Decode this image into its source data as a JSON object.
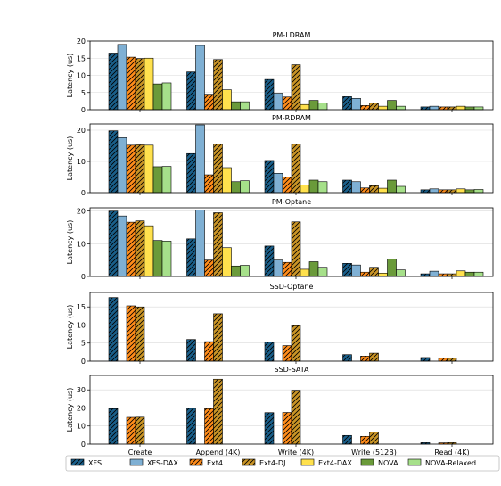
{
  "colors": {
    "XFS": "#1a5f8a",
    "XFS-DAX": "#7fb0d4",
    "Ext4": "#ff8c1a",
    "Ext4-DJ": "#c99426",
    "Ext4-DAX": "#ffe14d",
    "NOVA": "#6a9a3a",
    "NOVA-Relaxed": "#a6e08a"
  },
  "legend": {
    "items": [
      {
        "name": "XFS",
        "hatch": true
      },
      {
        "name": "XFS-DAX",
        "hatch": false
      },
      {
        "name": "Ext4",
        "hatch": true
      },
      {
        "name": "Ext4-DJ",
        "hatch": true
      },
      {
        "name": "Ext4-DAX",
        "hatch": false
      },
      {
        "name": "NOVA",
        "hatch": false
      },
      {
        "name": "NOVA-Relaxed",
        "hatch": false
      }
    ]
  },
  "chart_data": [
    {
      "type": "bar",
      "title": "PM-LDRAM",
      "ylabel": "Latency (us)",
      "ylim": [
        0,
        20
      ],
      "yticks": [
        0,
        5,
        10,
        15,
        20
      ],
      "categories": [
        "Create",
        "Append (4K)",
        "Write (4K)",
        "Write (512B)",
        "Read (4K)"
      ],
      "show_xticks": false,
      "series": [
        {
          "name": "XFS",
          "values": [
            16.5,
            11,
            8.8,
            3.8,
            0.8
          ]
        },
        {
          "name": "XFS-DAX",
          "values": [
            19,
            18.7,
            4.8,
            3.3,
            1
          ]
        },
        {
          "name": "Ext4",
          "values": [
            15.3,
            4.5,
            3.7,
            1.2,
            0.8
          ]
        },
        {
          "name": "Ext4-DJ",
          "values": [
            14.9,
            14.6,
            13.1,
            2,
            0.8
          ]
        },
        {
          "name": "Ext4-DAX",
          "values": [
            15,
            5.8,
            1.5,
            1,
            1
          ]
        },
        {
          "name": "NOVA",
          "values": [
            7.5,
            2.3,
            2.7,
            2.7,
            0.8
          ]
        },
        {
          "name": "NOVA-Relaxed",
          "values": [
            7.8,
            2.3,
            2,
            1,
            0.8
          ]
        }
      ]
    },
    {
      "type": "bar",
      "title": "PM-RDRAM",
      "ylabel": "Latency (us)",
      "ylim": [
        0,
        22
      ],
      "yticks": [
        0,
        10,
        20
      ],
      "categories": [
        "Create",
        "Append (4K)",
        "Write (4K)",
        "Write (512B)",
        "Read (4K)"
      ],
      "show_xticks": false,
      "series": [
        {
          "name": "XFS",
          "values": [
            19.8,
            12.5,
            10.3,
            4,
            0.9
          ]
        },
        {
          "name": "XFS-DAX",
          "values": [
            17.6,
            21.7,
            6.2,
            3.5,
            1.2
          ]
        },
        {
          "name": "Ext4",
          "values": [
            15.2,
            5.7,
            5,
            1.5,
            0.9
          ]
        },
        {
          "name": "Ext4-DJ",
          "values": [
            15.3,
            15.5,
            15.5,
            2.2,
            0.9
          ]
        },
        {
          "name": "Ext4-DAX",
          "values": [
            15.2,
            8,
            2.4,
            1.4,
            1.2
          ]
        },
        {
          "name": "NOVA",
          "values": [
            8.3,
            3.5,
            4,
            4,
            0.9
          ]
        },
        {
          "name": "NOVA-Relaxed",
          "values": [
            8.4,
            3.8,
            3.5,
            2,
            1
          ]
        }
      ]
    },
    {
      "type": "bar",
      "title": "PM-Optane",
      "ylabel": "Latency (us)",
      "ylim": [
        0,
        21
      ],
      "yticks": [
        0,
        10,
        20
      ],
      "categories": [
        "Create",
        "Append (4K)",
        "Write (4K)",
        "Write (512B)",
        "Read (4K)"
      ],
      "show_xticks": false,
      "series": [
        {
          "name": "XFS",
          "values": [
            20,
            11.5,
            9.3,
            4,
            0.8
          ]
        },
        {
          "name": "XFS-DAX",
          "values": [
            18.5,
            20.3,
            5,
            3.5,
            1.6
          ]
        },
        {
          "name": "Ext4",
          "values": [
            16.6,
            5,
            4.3,
            1.3,
            0.8
          ]
        },
        {
          "name": "Ext4-DJ",
          "values": [
            17,
            19.5,
            16.7,
            2.8,
            0.8
          ]
        },
        {
          "name": "Ext4-DAX",
          "values": [
            15.5,
            8.8,
            2.2,
            1,
            1.7
          ]
        },
        {
          "name": "NOVA",
          "values": [
            11,
            3.2,
            4.5,
            5.3,
            1.3
          ]
        },
        {
          "name": "NOVA-Relaxed",
          "values": [
            10.8,
            3.4,
            2.8,
            2,
            1.3
          ]
        }
      ]
    },
    {
      "type": "bar",
      "title": "SSD-Optane",
      "ylabel": "Latency (us)",
      "ylim": [
        0,
        19
      ],
      "yticks": [
        0,
        5,
        10,
        15
      ],
      "categories": [
        "Create",
        "Append (4K)",
        "Write (4K)",
        "Write (512B)",
        "Read (4K)"
      ],
      "show_xticks": false,
      "series": [
        {
          "name": "XFS",
          "values": [
            17.6,
            6,
            5.3,
            1.8,
            1
          ]
        },
        {
          "name": "Ext4",
          "values": [
            15.3,
            5.4,
            4.3,
            1.4,
            0.8
          ]
        },
        {
          "name": "Ext4-DJ",
          "values": [
            15,
            13.1,
            9.8,
            2.2,
            0.8
          ]
        }
      ]
    },
    {
      "type": "bar",
      "title": "SSD-SATA",
      "ylabel": "Latency (us)",
      "ylim": [
        0,
        38
      ],
      "yticks": [
        0,
        10,
        20,
        30
      ],
      "categories": [
        "Create",
        "Append (4K)",
        "Write (4K)",
        "Write (512B)",
        "Read (4K)"
      ],
      "show_xticks": true,
      "series": [
        {
          "name": "XFS",
          "values": [
            19.6,
            19.8,
            17.4,
            4.8,
            0.8
          ]
        },
        {
          "name": "Ext4",
          "values": [
            14.8,
            19.6,
            17.5,
            4.3,
            0.7
          ]
        },
        {
          "name": "Ext4-DJ",
          "values": [
            14.9,
            35.9,
            29.8,
            6.6,
            0.8
          ]
        }
      ]
    }
  ]
}
